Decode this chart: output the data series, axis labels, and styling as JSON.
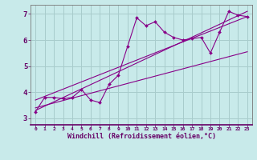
{
  "xlabel": "Windchill (Refroidissement éolien,°C)",
  "xlim": [
    -0.5,
    23.5
  ],
  "ylim": [
    2.75,
    7.35
  ],
  "xticks": [
    0,
    1,
    2,
    3,
    4,
    5,
    6,
    7,
    8,
    9,
    10,
    11,
    12,
    13,
    14,
    15,
    16,
    17,
    18,
    19,
    20,
    21,
    22,
    23
  ],
  "yticks": [
    3,
    4,
    5,
    6,
    7
  ],
  "bg_color": "#c8eaea",
  "line_color": "#880088",
  "grid_color": "#a8cccc",
  "main_x": [
    0,
    1,
    2,
    3,
    4,
    5,
    6,
    7,
    8,
    9,
    10,
    11,
    12,
    13,
    14,
    15,
    16,
    17,
    18,
    19,
    20,
    21,
    22,
    23
  ],
  "main_y": [
    3.25,
    3.8,
    3.8,
    3.75,
    3.8,
    4.1,
    3.7,
    3.6,
    4.3,
    4.65,
    5.75,
    6.85,
    6.55,
    6.7,
    6.3,
    6.1,
    6.0,
    6.05,
    6.1,
    5.5,
    6.3,
    7.1,
    6.95,
    6.9
  ],
  "trend1_x": [
    0,
    23
  ],
  "trend1_y": [
    3.3,
    7.1
  ],
  "trend2_x": [
    0,
    23
  ],
  "trend2_y": [
    3.7,
    6.9
  ],
  "trend3_x": [
    0,
    23
  ],
  "trend3_y": [
    3.4,
    5.55
  ]
}
